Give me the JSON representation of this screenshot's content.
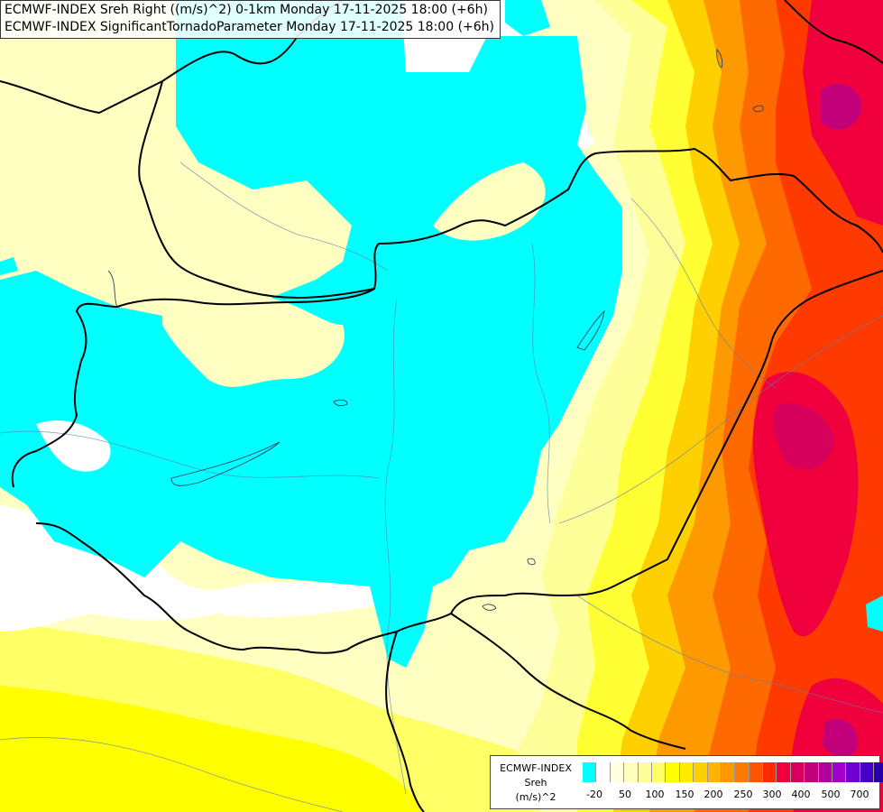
{
  "header": {
    "line1": "ECMWF-INDEX Sreh Right ((m/s)^2) 0-1km Monday 17-11-2025 18:00 (+6h)",
    "line2": "ECMWF-INDEX SignificantTornadoParameter Monday 17-11-2025 18:00 (+6h)"
  },
  "legend": {
    "source": "ECMWF-INDEX",
    "field": "Sreh",
    "unit": "(m/s)^2",
    "colors": [
      "#00ffff",
      "#ffffff",
      "#ffffe0",
      "#ffffbf",
      "#ffff99",
      "#ffff66",
      "#ffff00",
      "#ffea00",
      "#ffd000",
      "#ffb300",
      "#ff9900",
      "#ff7a00",
      "#ff5500",
      "#ff2a00",
      "#f0003c",
      "#d6005c",
      "#c2007a",
      "#b3009c",
      "#a000c8",
      "#7000d0",
      "#4600c8",
      "#2800aa",
      "#0a0a80"
    ],
    "ticks": [
      "-20",
      "50",
      "100",
      "150",
      "200",
      "250",
      "300",
      "400",
      "500",
      "700"
    ]
  },
  "map_colors": {
    "cyan": "#00ffff",
    "white": "#ffffff",
    "pale_yellow": "#ffffc2",
    "light_yellow": "#ffff99",
    "yellow": "#ffff33",
    "gold": "#ffd000",
    "orange": "#ff9900",
    "dark_orange": "#ff6a00",
    "red_orange": "#ff3a00",
    "red": "#f0003c",
    "crimson": "#d6005c",
    "magenta": "#c2007a"
  }
}
